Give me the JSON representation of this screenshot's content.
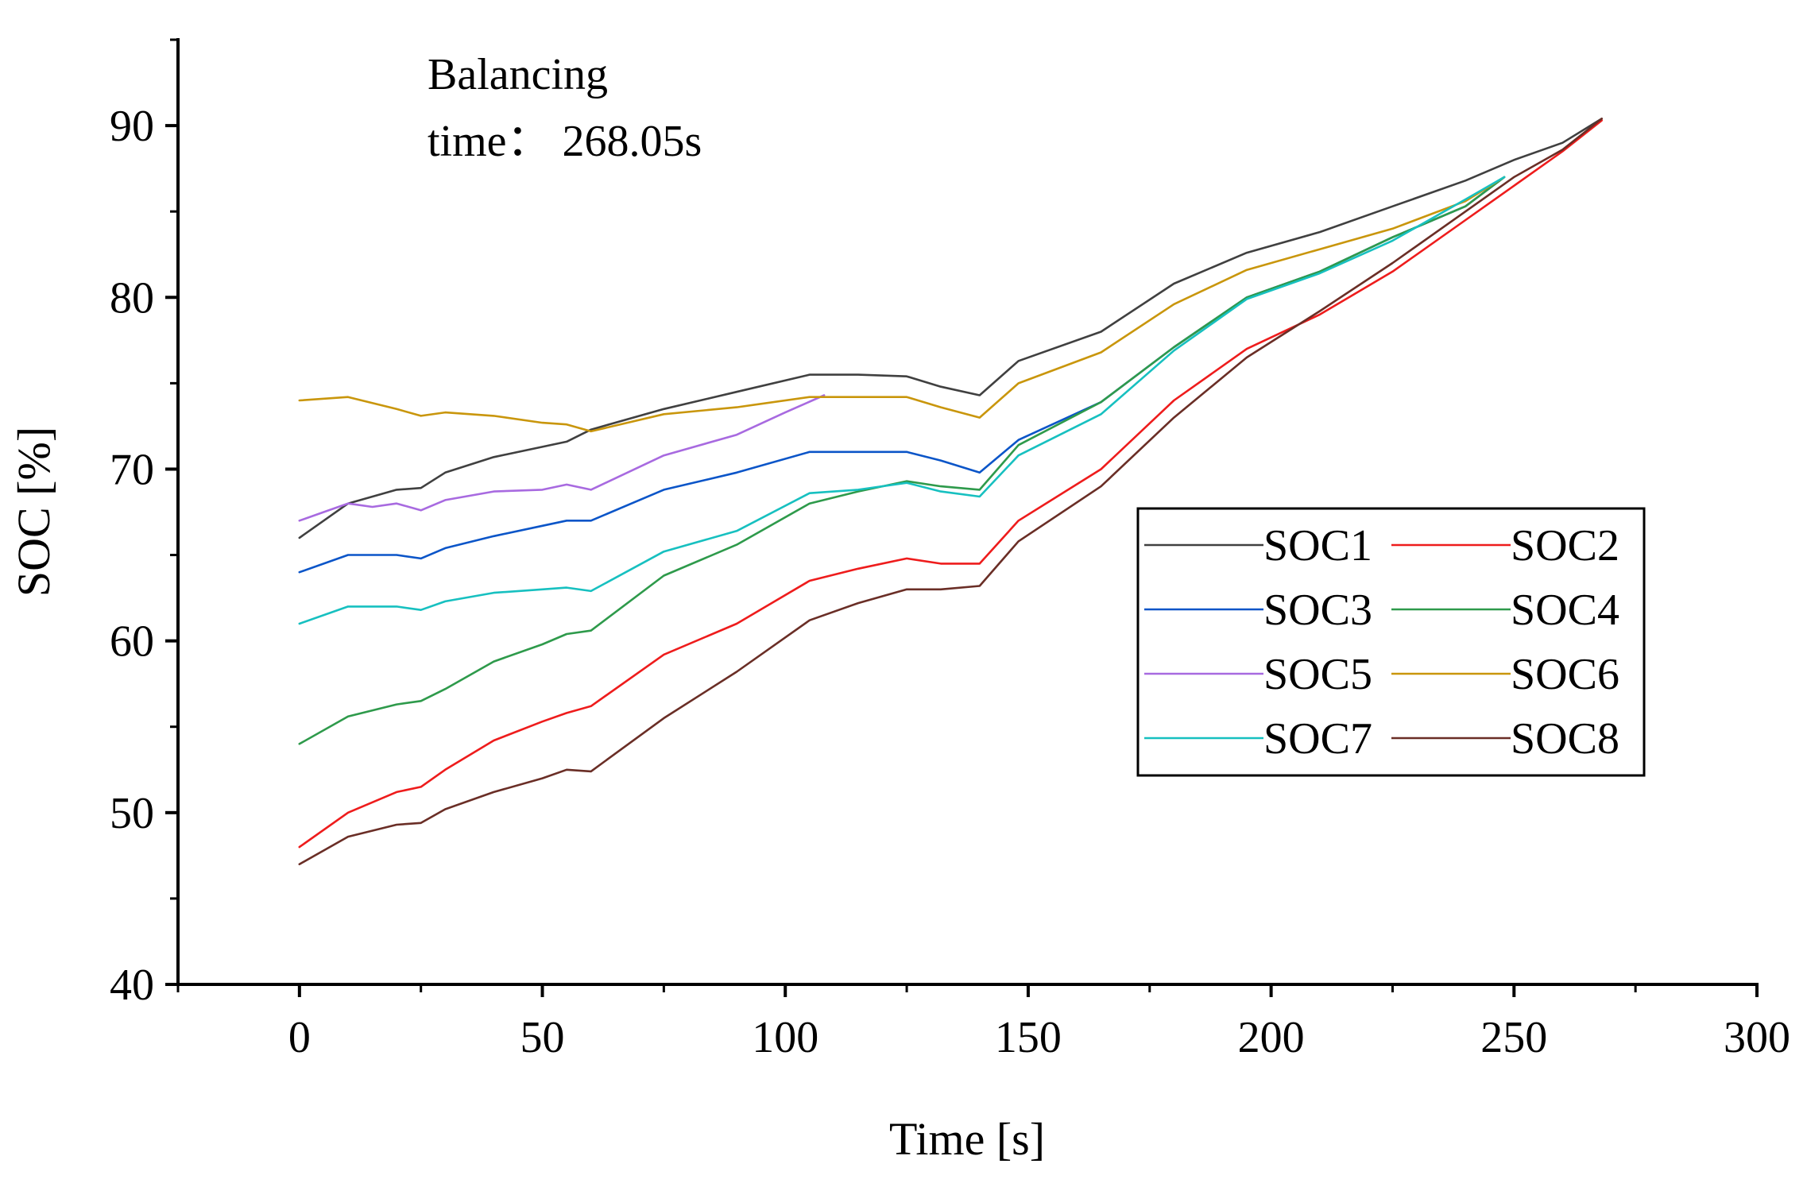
{
  "chart_data": {
    "type": "line",
    "title": "",
    "xlabel": "Time [s]",
    "ylabel": "SOC [%]",
    "xlim": [
      -25,
      300
    ],
    "ylim": [
      40,
      95
    ],
    "xticks": [
      0,
      50,
      100,
      150,
      200,
      250,
      300
    ],
    "xtick_labels": [
      "0",
      "50",
      "100",
      "150",
      "200",
      "250",
      "300"
    ],
    "yticks": [
      40,
      50,
      60,
      70,
      80,
      90
    ],
    "ytick_labels": [
      "40",
      "50",
      "60",
      "70",
      "80",
      "90"
    ],
    "grid": false,
    "legend_position": "center-right",
    "annotation": [
      "Balancing",
      "time： 268.05s"
    ],
    "series": [
      {
        "name": "SOC1",
        "color": "#404040",
        "x": [
          0,
          10,
          20,
          25,
          30,
          40,
          50,
          55,
          60,
          75,
          90,
          105,
          115,
          125,
          132,
          140,
          148,
          165,
          180,
          195,
          210,
          225,
          240,
          250,
          260,
          268.05
        ],
        "y": [
          66.0,
          68.0,
          68.8,
          68.9,
          69.8,
          70.7,
          71.3,
          71.6,
          72.3,
          73.5,
          74.5,
          75.5,
          75.5,
          75.4,
          74.8,
          74.3,
          76.3,
          78.0,
          80.8,
          82.6,
          83.8,
          85.3,
          86.8,
          88.0,
          89.0,
          90.4
        ]
      },
      {
        "name": "SOC2",
        "color": "#ee1c1c",
        "x": [
          0,
          10,
          20,
          25,
          30,
          40,
          50,
          55,
          60,
          75,
          90,
          105,
          115,
          125,
          132,
          140,
          148,
          165,
          180,
          195,
          210,
          225,
          240,
          250,
          260,
          268.05
        ],
        "y": [
          48.0,
          50.0,
          51.2,
          51.5,
          52.5,
          54.2,
          55.3,
          55.8,
          56.2,
          59.2,
          61.0,
          63.5,
          64.2,
          64.8,
          64.5,
          64.5,
          67.0,
          70.0,
          74.0,
          77.0,
          79.0,
          81.5,
          84.5,
          86.5,
          88.5,
          90.3
        ]
      },
      {
        "name": "SOC3",
        "color": "#0b55c8",
        "x": [
          0,
          10,
          20,
          25,
          30,
          40,
          50,
          55,
          60,
          75,
          90,
          105,
          115,
          125,
          132,
          140,
          148,
          165,
          180,
          195,
          210,
          225,
          240,
          248
        ],
        "y": [
          64.0,
          65.0,
          65.0,
          64.8,
          65.4,
          66.1,
          66.7,
          67.0,
          67.0,
          68.8,
          69.8,
          71.0,
          71.0,
          71.0,
          70.5,
          69.8,
          71.7,
          73.9,
          77.1,
          80.0,
          81.5,
          83.5,
          85.3,
          87.0
        ]
      },
      {
        "name": "SOC4",
        "color": "#2e9a4b",
        "x": [
          0,
          10,
          20,
          25,
          30,
          40,
          50,
          55,
          60,
          75,
          90,
          105,
          115,
          125,
          132,
          140,
          148,
          165,
          180,
          195,
          210,
          225,
          240,
          248
        ],
        "y": [
          54.0,
          55.6,
          56.3,
          56.5,
          57.2,
          58.8,
          59.8,
          60.4,
          60.6,
          63.8,
          65.6,
          68.0,
          68.7,
          69.3,
          69.0,
          68.8,
          71.4,
          73.9,
          77.1,
          80.0,
          81.5,
          83.5,
          85.3,
          87.0
        ]
      },
      {
        "name": "SOC5",
        "color": "#a86ae0",
        "x": [
          0,
          5,
          10,
          15,
          20,
          25,
          30,
          40,
          50,
          55,
          60,
          75,
          90,
          100,
          108
        ],
        "y": [
          67.0,
          67.5,
          68.0,
          67.8,
          68.0,
          67.6,
          68.2,
          68.7,
          68.8,
          69.1,
          68.8,
          70.8,
          72.0,
          73.3,
          74.3
        ]
      },
      {
        "name": "SOC6",
        "color": "#c9960c",
        "x": [
          0,
          10,
          20,
          25,
          30,
          40,
          50,
          55,
          60,
          75,
          90,
          105,
          115,
          125,
          132,
          140,
          148,
          165,
          180,
          195,
          210,
          225,
          240,
          248
        ],
        "y": [
          74.0,
          74.2,
          73.5,
          73.1,
          73.3,
          73.1,
          72.7,
          72.6,
          72.2,
          73.2,
          73.6,
          74.2,
          74.2,
          74.2,
          73.6,
          73.0,
          75.0,
          76.8,
          79.6,
          81.6,
          82.8,
          84.0,
          85.6,
          87.0
        ]
      },
      {
        "name": "SOC7",
        "color": "#17c0c0",
        "x": [
          0,
          10,
          20,
          25,
          30,
          40,
          50,
          55,
          60,
          75,
          90,
          105,
          115,
          125,
          132,
          140,
          148,
          165,
          180,
          195,
          210,
          225,
          240,
          248
        ],
        "y": [
          61.0,
          62.0,
          62.0,
          61.8,
          62.3,
          62.8,
          63.0,
          63.1,
          62.9,
          65.2,
          66.4,
          68.6,
          68.8,
          69.2,
          68.7,
          68.4,
          70.8,
          73.2,
          76.9,
          79.9,
          81.4,
          83.3,
          85.7,
          87.0
        ]
      },
      {
        "name": "SOC8",
        "color": "#6a2e26",
        "x": [
          0,
          10,
          20,
          25,
          30,
          40,
          50,
          55,
          60,
          75,
          90,
          105,
          115,
          125,
          132,
          140,
          148,
          165,
          180,
          195,
          210,
          225,
          240,
          250,
          260,
          268.05
        ],
        "y": [
          47.0,
          48.6,
          49.3,
          49.4,
          50.2,
          51.2,
          52.0,
          52.5,
          52.4,
          55.5,
          58.2,
          61.2,
          62.2,
          63.0,
          63.0,
          63.2,
          65.8,
          69.0,
          73.0,
          76.5,
          79.2,
          82.0,
          85.0,
          87.0,
          88.6,
          90.4
        ]
      }
    ]
  }
}
